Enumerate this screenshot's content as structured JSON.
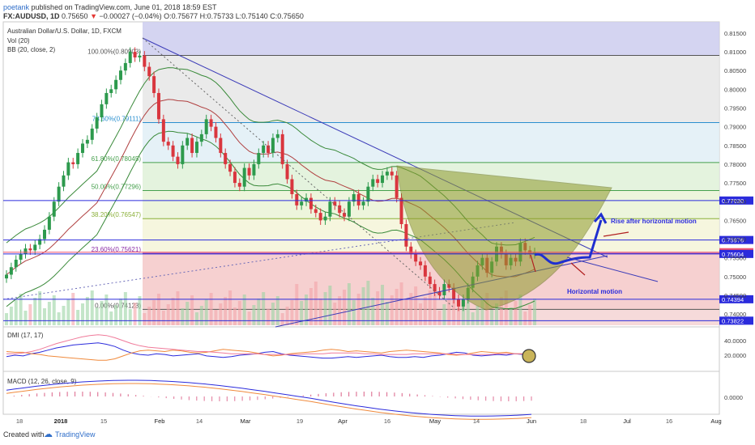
{
  "header": {
    "author": "poetank",
    "published_text": "published on TradingView.com, June 01, 2018 18:59 EST",
    "symbol": "FX:AUDUSD, 1D",
    "last": "0.75650",
    "change_arrow": "▼",
    "change": "−0.00027 (−0.04%)",
    "open": "O:0.75677",
    "high": "H:0.75733",
    "low": "L:0.75140",
    "close": "C:0.75650"
  },
  "footer": {
    "created_with": "Created with",
    "brand": "TradingView"
  },
  "chart_data": {
    "type": "candlestick",
    "title": "Australian Dollar/U.S. Dollar, 1D, FXCM",
    "indicators": [
      "Vol (20)",
      "BB (20, close, 2)"
    ],
    "x_labels": [
      "18",
      "2018",
      "15",
      "Feb",
      "14",
      "Mar",
      "19",
      "Apr",
      "16",
      "May",
      "14",
      "Jun",
      "18",
      "Jul",
      "16",
      "Aug"
    ],
    "y_ticks": [
      "0.81500",
      "0.81000",
      "0.80500",
      "0.80000",
      "0.79500",
      "0.79000",
      "0.78500",
      "0.78000",
      "0.77500",
      "0.77000",
      "0.76500",
      "0.76000",
      "0.75500",
      "0.75000",
      "0.74500",
      "0.74000"
    ],
    "ylim": [
      0.737,
      0.818
    ],
    "fib_levels": [
      {
        "label": "100.00%(0.80903)",
        "value": 0.80903
      },
      {
        "label": "78.60%(0.79111)",
        "value": 0.79111
      },
      {
        "label": "61.80%(0.78045)",
        "value": 0.78045
      },
      {
        "label": "50.00%(0.77296)",
        "value": 0.77296
      },
      {
        "label": "38.20%(0.76547)",
        "value": 0.76547
      },
      {
        "label": "23.60%(0.75621)",
        "value": 0.75621
      },
      {
        "label": "0.00%(0.74123)",
        "value": 0.74123
      }
    ],
    "price_markers": [
      {
        "label": "0.77030",
        "value": 0.7703,
        "color": "#2b2bdc"
      },
      {
        "label": "0.75976",
        "value": 0.75976,
        "color": "#2b2bdc"
      },
      {
        "label": "0.75650",
        "value": 0.7565,
        "color": "#f0506e"
      },
      {
        "label": "0.75604",
        "value": 0.75604,
        "color": "#2b2bdc"
      },
      {
        "label": "0.74394",
        "value": 0.74394,
        "color": "#2b2bdc"
      },
      {
        "label": "0.73822",
        "value": 0.73822,
        "color": "#2b2bdc"
      }
    ],
    "close_series": [
      0.7505,
      0.7525,
      0.7545,
      0.756,
      0.7575,
      0.757,
      0.7585,
      0.76,
      0.7625,
      0.766,
      0.77,
      0.774,
      0.777,
      0.7805,
      0.78,
      0.783,
      0.7855,
      0.7865,
      0.7895,
      0.7925,
      0.796,
      0.799,
      0.8,
      0.8025,
      0.805,
      0.807,
      0.81,
      0.8085,
      0.809,
      0.806,
      0.8035,
      0.799,
      0.792,
      0.786,
      0.785,
      0.782,
      0.78,
      0.785,
      0.787,
      0.783,
      0.786,
      0.788,
      0.792,
      0.79,
      0.787,
      0.783,
      0.78,
      0.778,
      0.775,
      0.774,
      0.779,
      0.777,
      0.78,
      0.783,
      0.785,
      0.783,
      0.787,
      0.788,
      0.78,
      0.776,
      0.772,
      0.769,
      0.77,
      0.771,
      0.768,
      0.767,
      0.765,
      0.766,
      0.77,
      0.769,
      0.767,
      0.766,
      0.77,
      0.772,
      0.769,
      0.77,
      0.774,
      0.776,
      0.775,
      0.777,
      0.778,
      0.777,
      0.771,
      0.764,
      0.758,
      0.756,
      0.754,
      0.753,
      0.75,
      0.748,
      0.746,
      0.745,
      0.748,
      0.747,
      0.744,
      0.742,
      0.744,
      0.747,
      0.75,
      0.753,
      0.755,
      0.751,
      0.754,
      0.758,
      0.756,
      0.753,
      0.755,
      0.754,
      0.759,
      0.757,
      0.756,
      0.7565
    ],
    "annotations": [
      "Rise after horizontal motion",
      "Horizontal motion"
    ]
  },
  "dmi_panel": {
    "label": "DMI (17, 17)",
    "y_ticks": [
      "40.0000",
      "20.0000"
    ],
    "series": [
      {
        "name": "+DI",
        "color": "#2b2bdc",
        "values": [
          18,
          20,
          19,
          22,
          24,
          27,
          30,
          32,
          34,
          35,
          36,
          37,
          35,
          32,
          27,
          23,
          21,
          20,
          22,
          21,
          19,
          20,
          21,
          22,
          19,
          18,
          17,
          18,
          20,
          21,
          22,
          24,
          25,
          22,
          20,
          19,
          18,
          17,
          16,
          16,
          17,
          18,
          17,
          18,
          19,
          20,
          18,
          17,
          17,
          18,
          17,
          19,
          20,
          22,
          24,
          23,
          20,
          19,
          20,
          21,
          20,
          22,
          21,
          20
        ]
      },
      {
        "name": "-DI",
        "color": "#f08a3c",
        "values": [
          25,
          24,
          24,
          22,
          21,
          19,
          18,
          17,
          16,
          15,
          14,
          13,
          13,
          15,
          19,
          23,
          26,
          27,
          26,
          25,
          27,
          26,
          24,
          23,
          24,
          26,
          28,
          27,
          26,
          25,
          23,
          21,
          19,
          20,
          22,
          23,
          24,
          25,
          27,
          28,
          27,
          25,
          26,
          25,
          24,
          23,
          25,
          26,
          27,
          26,
          25,
          24,
          23,
          21,
          20,
          21,
          23,
          25,
          24,
          23,
          24,
          22,
          22,
          23
        ]
      },
      {
        "name": "ADX",
        "color": "#f07a9a",
        "values": [
          22,
          22,
          23,
          25,
          28,
          32,
          36,
          39,
          42,
          45,
          47,
          48,
          47,
          44,
          40,
          36,
          33,
          31,
          30,
          29,
          28,
          27,
          26,
          25,
          25,
          24,
          23,
          22,
          22,
          22,
          22,
          21,
          21,
          21,
          21,
          21,
          22,
          22,
          22,
          23,
          23,
          23,
          23,
          22,
          22,
          21,
          21,
          21,
          21,
          22,
          22,
          22,
          22,
          22,
          21,
          21,
          21,
          21,
          21,
          22,
          22,
          22,
          22,
          22
        ]
      }
    ]
  },
  "macd_panel": {
    "label": "MACD (12, 26, close, 9)",
    "y_tick": "0.0000"
  }
}
